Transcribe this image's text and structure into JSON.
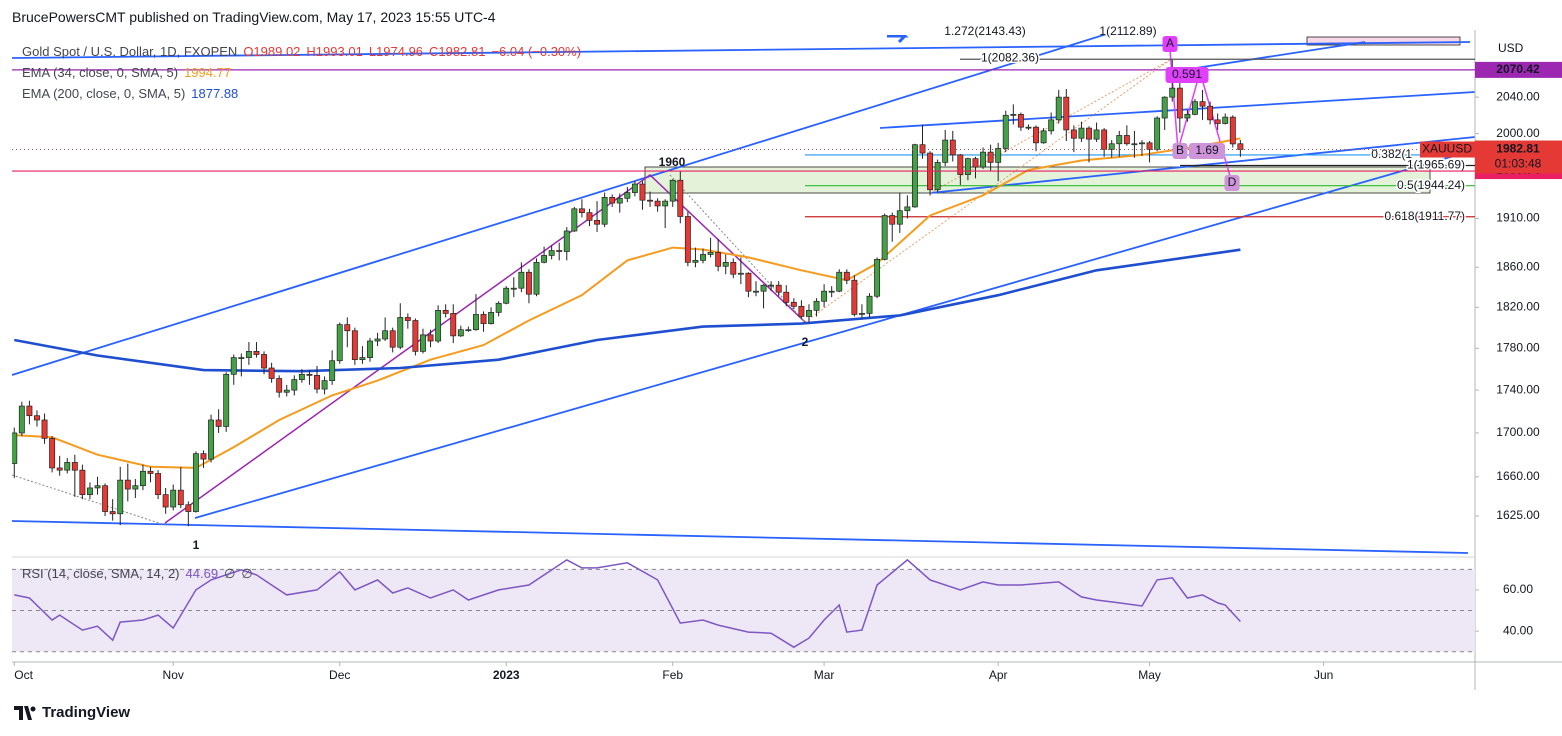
{
  "header": "BrucePowersCMT published on TradingView.com, May 17, 2023 15:55 UTC-4",
  "footer": "TradingView",
  "chart_data": {
    "type": "candlestick",
    "title": "Gold Spot / U.S. Dollar, 1D, FXOPEN",
    "ohlc_labels": [
      "O1989.02",
      "H1993.01",
      "L1974.96",
      "C1982.81"
    ],
    "change": "−6.04 (−0.30%)",
    "currency": "USD",
    "symbol": "XAUUSD",
    "last_price": 1982.81,
    "countdown": "01:03:48",
    "up_color": "#43a047",
    "down_color": "#e53935",
    "ohlc": [
      [
        1672,
        1705,
        1659,
        1700
      ],
      [
        1700,
        1729,
        1697,
        1725
      ],
      [
        1725,
        1730,
        1708,
        1716
      ],
      [
        1716,
        1721,
        1706,
        1712
      ],
      [
        1712,
        1718,
        1690,
        1695
      ],
      [
        1695,
        1697,
        1664,
        1668
      ],
      [
        1668,
        1679,
        1661,
        1666
      ],
      [
        1666,
        1677,
        1663,
        1673
      ],
      [
        1673,
        1680,
        1642,
        1666
      ],
      [
        1666,
        1671,
        1640,
        1644
      ],
      [
        1644,
        1655,
        1640,
        1650
      ],
      [
        1650,
        1660,
        1644,
        1652
      ],
      [
        1652,
        1654,
        1625,
        1629
      ],
      [
        1629,
        1640,
        1621,
        1627
      ],
      [
        1627,
        1669,
        1617,
        1657
      ],
      [
        1657,
        1672,
        1638,
        1649
      ],
      [
        1649,
        1658,
        1641,
        1652
      ],
      [
        1652,
        1671,
        1648,
        1665
      ],
      [
        1665,
        1669,
        1655,
        1663
      ],
      [
        1663,
        1666,
        1640,
        1644
      ],
      [
        1644,
        1650,
        1627,
        1633
      ],
      [
        1633,
        1653,
        1630,
        1648
      ],
      [
        1648,
        1669,
        1632,
        1635
      ],
      [
        1635,
        1638,
        1616,
        1629
      ],
      [
        1629,
        1683,
        1628,
        1681
      ],
      [
        1681,
        1684,
        1668,
        1676
      ],
      [
        1676,
        1717,
        1673,
        1712
      ],
      [
        1712,
        1722,
        1700,
        1706
      ],
      [
        1706,
        1757,
        1701,
        1755
      ],
      [
        1755,
        1774,
        1745,
        1771
      ],
      [
        1771,
        1775,
        1753,
        1771
      ],
      [
        1771,
        1786,
        1764,
        1777
      ],
      [
        1777,
        1786,
        1771,
        1774
      ],
      [
        1774,
        1777,
        1755,
        1761
      ],
      [
        1761,
        1766,
        1747,
        1751
      ],
      [
        1751,
        1754,
        1733,
        1738
      ],
      [
        1738,
        1745,
        1734,
        1740
      ],
      [
        1740,
        1754,
        1735,
        1750
      ],
      [
        1750,
        1760,
        1747,
        1755
      ],
      [
        1755,
        1759,
        1745,
        1754
      ],
      [
        1754,
        1763,
        1737,
        1741
      ],
      [
        1741,
        1753,
        1736,
        1749
      ],
      [
        1749,
        1778,
        1745,
        1768
      ],
      [
        1768,
        1805,
        1765,
        1803
      ],
      [
        1803,
        1810,
        1781,
        1797
      ],
      [
        1797,
        1800,
        1764,
        1769
      ],
      [
        1769,
        1782,
        1765,
        1771
      ],
      [
        1771,
        1790,
        1767,
        1787
      ],
      [
        1787,
        1795,
        1782,
        1789
      ],
      [
        1789,
        1810,
        1787,
        1797
      ],
      [
        1797,
        1800,
        1776,
        1781
      ],
      [
        1781,
        1824,
        1779,
        1810
      ],
      [
        1810,
        1814,
        1799,
        1807
      ],
      [
        1807,
        1809,
        1773,
        1777
      ],
      [
        1777,
        1799,
        1775,
        1793
      ],
      [
        1793,
        1798,
        1781,
        1787
      ],
      [
        1787,
        1822,
        1785,
        1817
      ],
      [
        1817,
        1823,
        1810,
        1814
      ],
      [
        1814,
        1823,
        1785,
        1792
      ],
      [
        1792,
        1802,
        1791,
        1798
      ],
      [
        1798,
        1801,
        1796,
        1798
      ],
      [
        1798,
        1833,
        1797,
        1813
      ],
      [
        1813,
        1816,
        1796,
        1804
      ],
      [
        1804,
        1820,
        1803,
        1815
      ],
      [
        1815,
        1826,
        1811,
        1824
      ],
      [
        1824,
        1841,
        1823,
        1839
      ],
      [
        1839,
        1850,
        1830,
        1839
      ],
      [
        1839,
        1865,
        1835,
        1855
      ],
      [
        1855,
        1858,
        1824,
        1833
      ],
      [
        1833,
        1869,
        1831,
        1865
      ],
      [
        1865,
        1881,
        1864,
        1872
      ],
      [
        1872,
        1882,
        1868,
        1877
      ],
      [
        1877,
        1885,
        1867,
        1876
      ],
      [
        1876,
        1901,
        1867,
        1897
      ],
      [
        1897,
        1922,
        1896,
        1920
      ],
      [
        1920,
        1930,
        1911,
        1916
      ],
      [
        1916,
        1920,
        1902,
        1908
      ],
      [
        1908,
        1928,
        1896,
        1904
      ],
      [
        1904,
        1937,
        1901,
        1932
      ],
      [
        1932,
        1935,
        1922,
        1926
      ],
      [
        1926,
        1936,
        1916,
        1931
      ],
      [
        1931,
        1943,
        1927,
        1937
      ],
      [
        1937,
        1949,
        1933,
        1946
      ],
      [
        1946,
        1949,
        1919,
        1929
      ],
      [
        1929,
        1938,
        1922,
        1928
      ],
      [
        1928,
        1931,
        1917,
        1923
      ],
      [
        1923,
        1930,
        1900,
        1928
      ],
      [
        1928,
        1951,
        1922,
        1950
      ],
      [
        1950,
        1960,
        1905,
        1912
      ],
      [
        1912,
        1917,
        1861,
        1865
      ],
      [
        1865,
        1880,
        1860,
        1867
      ],
      [
        1867,
        1879,
        1864,
        1873
      ],
      [
        1873,
        1890,
        1870,
        1875
      ],
      [
        1875,
        1889,
        1856,
        1861
      ],
      [
        1861,
        1873,
        1853,
        1865
      ],
      [
        1865,
        1869,
        1849,
        1853
      ],
      [
        1853,
        1870,
        1843,
        1854
      ],
      [
        1854,
        1855,
        1830,
        1836
      ],
      [
        1836,
        1846,
        1831,
        1836
      ],
      [
        1836,
        1843,
        1819,
        1842
      ],
      [
        1842,
        1846,
        1836,
        1842
      ],
      [
        1842,
        1846,
        1831,
        1835
      ],
      [
        1835,
        1842,
        1821,
        1825
      ],
      [
        1825,
        1829,
        1818,
        1821
      ],
      [
        1821,
        1827,
        1809,
        1811
      ],
      [
        1811,
        1823,
        1805,
        1817
      ],
      [
        1817,
        1829,
        1811,
        1826
      ],
      [
        1826,
        1843,
        1820,
        1836
      ],
      [
        1836,
        1841,
        1830,
        1836
      ],
      [
        1836,
        1858,
        1835,
        1855
      ],
      [
        1855,
        1858,
        1843,
        1847
      ],
      [
        1847,
        1852,
        1811,
        1813
      ],
      [
        1813,
        1823,
        1809,
        1814
      ],
      [
        1814,
        1834,
        1810,
        1831
      ],
      [
        1831,
        1870,
        1829,
        1868
      ],
      [
        1868,
        1915,
        1867,
        1913
      ],
      [
        1913,
        1916,
        1886,
        1904
      ],
      [
        1904,
        1937,
        1895,
        1918
      ],
      [
        1918,
        1934,
        1910,
        1922
      ],
      [
        1922,
        1989,
        1921,
        1988
      ],
      [
        1988,
        2010,
        1973,
        1979
      ],
      [
        1979,
        1981,
        1934,
        1940
      ],
      [
        1940,
        1972,
        1937,
        1969
      ],
      [
        1969,
        2004,
        1965,
        1993
      ],
      [
        1993,
        2003,
        1970,
        1977
      ],
      [
        1977,
        1978,
        1945,
        1956
      ],
      [
        1956,
        1974,
        1950,
        1973
      ],
      [
        1973,
        1975,
        1952,
        1964
      ],
      [
        1964,
        1985,
        1962,
        1980
      ],
      [
        1980,
        1988,
        1960,
        1969
      ],
      [
        1969,
        1990,
        1949,
        1984
      ],
      [
        1984,
        2025,
        1980,
        2020
      ],
      [
        2020,
        2032,
        2010,
        2021
      ],
      [
        2021,
        2023,
        2003,
        2007
      ],
      [
        2007,
        2010,
        2004,
        2007
      ],
      [
        2007,
        2009,
        1981,
        1990
      ],
      [
        1990,
        2006,
        1989,
        2003
      ],
      [
        2003,
        2023,
        1999,
        2015
      ],
      [
        2015,
        2048,
        2011,
        2040
      ],
      [
        2040,
        2049,
        1992,
        2004
      ],
      [
        2004,
        2009,
        1980,
        1995
      ],
      [
        1995,
        2013,
        1991,
        2006
      ],
      [
        2006,
        2008,
        1969,
        1994
      ],
      [
        1994,
        2012,
        1991,
        2004
      ],
      [
        2004,
        2006,
        1975,
        1983
      ],
      [
        1983,
        1993,
        1974,
        1989
      ],
      [
        1989,
        2003,
        1975,
        1998
      ],
      [
        1998,
        2009,
        1987,
        1989
      ],
      [
        1989,
        2003,
        1974,
        1989
      ],
      [
        1989,
        1993,
        1976,
        1990
      ],
      [
        1990,
        1992,
        1969,
        1983
      ],
      [
        1983,
        2019,
        1981,
        2017
      ],
      [
        2017,
        2041,
        2004,
        2040
      ],
      [
        2040,
        2082,
        2035,
        2050
      ],
      [
        2050,
        2063,
        2001,
        2017
      ],
      [
        2017,
        2026,
        2013,
        2021
      ],
      [
        2021,
        2038,
        2020,
        2035
      ],
      [
        2035,
        2048,
        2015,
        2030
      ],
      [
        2030,
        2035,
        2010,
        2015
      ],
      [
        2015,
        2022,
        2004,
        2011
      ],
      [
        2011,
        2022,
        2010,
        2018
      ],
      [
        2018,
        2020,
        1985,
        1988.85
      ],
      [
        1989.02,
        1993.01,
        1974.96,
        1982.81
      ]
    ],
    "xlim": [
      -0.3,
      193
    ],
    "xticks": [
      {
        "value": 0,
        "label": "Oct"
      },
      {
        "value": 21,
        "label": "Nov"
      },
      {
        "value": 43,
        "label": "Dec"
      },
      {
        "value": 65,
        "label": "2023"
      },
      {
        "value": 87,
        "label": "Feb"
      },
      {
        "value": 107,
        "label": "Mar"
      },
      {
        "value": 130,
        "label": "Apr"
      },
      {
        "value": 150,
        "label": "May"
      },
      {
        "value": 173,
        "label": "Jun"
      }
    ],
    "ylim": [
      1591,
      2110
    ],
    "log_scale": true,
    "yticks": [
      {
        "value": 2040,
        "label": "2040.00"
      },
      {
        "value": 2000,
        "label": "2000.00"
      },
      {
        "value": 1910,
        "label": "1910.00"
      },
      {
        "value": 1860,
        "label": "1860.00"
      },
      {
        "value": 1820,
        "label": "1820.00"
      },
      {
        "value": 1780,
        "label": "1780.00"
      },
      {
        "value": 1740,
        "label": "1740.00"
      },
      {
        "value": 1700,
        "label": "1700.00"
      },
      {
        "value": 1660,
        "label": "1660.00"
      },
      {
        "value": 1625,
        "label": "1625.00"
      }
    ],
    "overlays": [
      {
        "name": "EMA (34, close, 0, SMA, 5)",
        "color": "#f59b1e",
        "last": 1994.77,
        "x": [
          0,
          5,
          11,
          18,
          24,
          29,
          35,
          42,
          48,
          55,
          62,
          68,
          75,
          81,
          87,
          91,
          97,
          104,
          110,
          114,
          121,
          128,
          134,
          141,
          149,
          157,
          162
        ],
        "values": [
          1698,
          1696,
          1680,
          1669,
          1668,
          1687,
          1712,
          1735,
          1749,
          1769,
          1783,
          1807,
          1832,
          1867,
          1880,
          1878,
          1870,
          1857,
          1847,
          1864,
          1913,
          1934,
          1961,
          1971,
          1977,
          1987,
          1994.77
        ]
      },
      {
        "name": "EMA (200, close, 0, SMA, 5)",
        "color": "#1f4fd1",
        "last": 1877.88,
        "x": [
          0,
          11,
          25,
          38,
          51,
          64,
          77,
          91,
          104,
          117,
          130,
          143,
          162
        ],
        "values": [
          1788,
          1773,
          1759,
          1758,
          1761,
          1769,
          1788,
          1801,
          1804,
          1812,
          1832,
          1857,
          1877.88
        ]
      }
    ],
    "levels": [
      {
        "value": 2070.42,
        "color": "#9c27b0"
      },
      {
        "value": 1959.74,
        "color": "#e91e63"
      }
    ],
    "fib_levels": [
      {
        "value": 2082.36,
        "label": "1(2082.36)",
        "color": "#555555"
      },
      {
        "value": 1977,
        "label": "0.382(1",
        "color": "#2196f3"
      },
      {
        "value": 1965.69,
        "label": "1(1965.69)",
        "color": "#222222"
      },
      {
        "value": 1944.24,
        "label": "0.5(1944.24)",
        "color": "#2eb82e"
      },
      {
        "value": 1911.77,
        "label": "0.618(1911.77)",
        "color": "#c62828"
      }
    ],
    "annotations": [
      "1960",
      "1",
      "2",
      "A",
      "B",
      "D",
      "0.591",
      "1.69",
      "1.272(2143.43)",
      "1(2112.89)"
    ],
    "rsi": {
      "name": "RSI (14, close, SMA, 14, 2)",
      "last": 44.69,
      "extras": [
        "∅",
        "∅"
      ],
      "color": "#7e57c2",
      "ylim": [
        25,
        76
      ],
      "yticks": [
        {
          "value": 60,
          "label": "60.00"
        },
        {
          "value": 40,
          "label": "40.00"
        }
      ],
      "bands": [
        30,
        50,
        70
      ],
      "x": [
        0,
        2,
        5,
        6,
        9,
        11,
        13,
        14,
        17,
        19,
        21,
        24,
        26,
        30,
        32,
        34,
        36,
        40,
        43,
        45,
        48,
        50,
        52,
        55,
        58,
        60,
        64,
        68,
        73,
        75,
        77,
        81,
        85,
        88,
        91,
        93,
        97,
        100,
        103,
        105,
        107,
        109,
        110,
        112,
        114,
        118,
        121,
        125,
        128,
        130,
        133,
        138,
        141,
        143,
        146,
        149,
        151,
        153,
        155,
        157,
        159,
        160,
        162
      ],
      "values": [
        57.6,
        56.1,
        45.4,
        47.8,
        40.5,
        42.4,
        35.6,
        44.4,
        45.4,
        47.8,
        41.5,
        60,
        64.9,
        69.8,
        67.3,
        62.4,
        57.6,
        60,
        68.8,
        60,
        64.9,
        58.5,
        61,
        56.1,
        60,
        55.1,
        60,
        62.4,
        74.6,
        70.7,
        70.7,
        73.2,
        64.9,
        43.9,
        45.4,
        42.9,
        39.5,
        39,
        32.2,
        36.6,
        45.4,
        52.7,
        39.5,
        40.5,
        62.4,
        74.6,
        64.9,
        60,
        63.9,
        62.4,
        62.4,
        63.9,
        56.6,
        55.1,
        53.7,
        52.2,
        64.9,
        65.9,
        56.1,
        57.6,
        53.7,
        52.7,
        44.69
      ]
    }
  }
}
